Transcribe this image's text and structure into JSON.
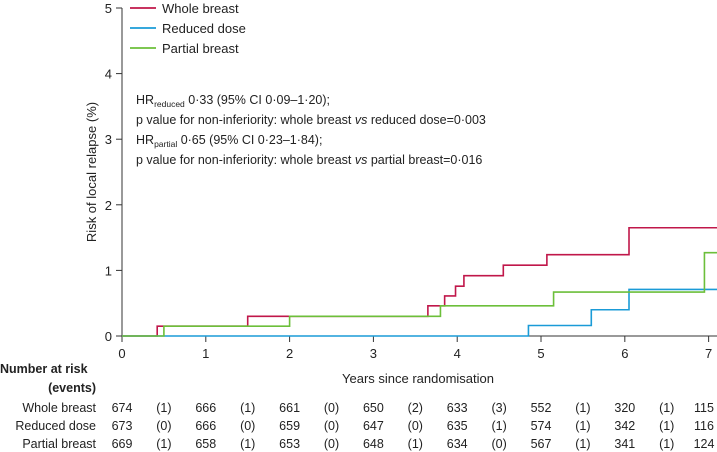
{
  "chart_data": {
    "type": "line",
    "subtype": "kaplan-meier",
    "xlabel": "Years since randomisation",
    "ylabel": "Risk of local relapse (%)",
    "xlim": [
      0,
      7.1
    ],
    "ylim": [
      0,
      5
    ],
    "x_ticks": [
      "0",
      "1",
      "2",
      "3",
      "4",
      "5",
      "6",
      "7"
    ],
    "y_ticks": [
      "0",
      "1",
      "2",
      "3",
      "4",
      "5"
    ],
    "legend_position": "top-center",
    "series": [
      {
        "name": "Whole breast",
        "color": "#c0174a",
        "steps": [
          [
            0,
            0
          ],
          [
            0.42,
            0.15
          ],
          [
            1.5,
            0.3
          ],
          [
            3.65,
            0.46
          ],
          [
            3.85,
            0.61
          ],
          [
            3.98,
            0.76
          ],
          [
            4.08,
            0.92
          ],
          [
            4.55,
            1.08
          ],
          [
            5.07,
            1.24
          ],
          [
            6.05,
            1.65
          ],
          [
            7.1,
            1.65
          ]
        ]
      },
      {
        "name": "Reduced dose",
        "color": "#1a9bd7",
        "steps": [
          [
            0,
            0
          ],
          [
            4.85,
            0.16
          ],
          [
            5.6,
            0.4
          ],
          [
            6.05,
            0.71
          ],
          [
            7.1,
            0.71
          ]
        ]
      },
      {
        "name": "Partial breast",
        "color": "#6cbf3a",
        "steps": [
          [
            0,
            0
          ],
          [
            0.5,
            0.15
          ],
          [
            2.0,
            0.3
          ],
          [
            3.8,
            0.46
          ],
          [
            5.15,
            0.67
          ],
          [
            6.95,
            1.27
          ],
          [
            7.1,
            1.27
          ]
        ]
      }
    ],
    "annotations": [
      {
        "prefix": "HR",
        "sub": "reduced",
        "text": " 0·33 (95% CI 0·09–1·20);"
      },
      {
        "text": "p value for non-inferiority: whole breast ",
        "italic": "vs",
        "text2": " reduced dose=0·003"
      },
      {
        "prefix": "HR",
        "sub": "partial",
        "text": " 0·65 (95% CI 0·23–1·84);"
      },
      {
        "text": "p value for non-inferiority: whole breast ",
        "italic": "vs",
        "text2": " partial breast=0·016"
      }
    ],
    "risk_table": {
      "title_line1": "Number at risk",
      "title_line2": "(events)",
      "rows": [
        {
          "label": "Whole breast",
          "cells": [
            "674",
            "(1)",
            "666",
            "(1)",
            "661",
            "(0)",
            "650",
            "(2)",
            "633",
            "(3)",
            "552",
            "(1)",
            "320",
            "(1)",
            "115"
          ]
        },
        {
          "label": "Reduced dose",
          "cells": [
            "673",
            "(0)",
            "666",
            "(0)",
            "659",
            "(0)",
            "647",
            "(0)",
            "635",
            "(1)",
            "574",
            "(1)",
            "342",
            "(1)",
            "116"
          ]
        },
        {
          "label": "Partial breast",
          "cells": [
            "669",
            "(1)",
            "658",
            "(1)",
            "653",
            "(0)",
            "648",
            "(1)",
            "634",
            "(0)",
            "567",
            "(1)",
            "341",
            "(1)",
            "124"
          ]
        }
      ]
    }
  }
}
